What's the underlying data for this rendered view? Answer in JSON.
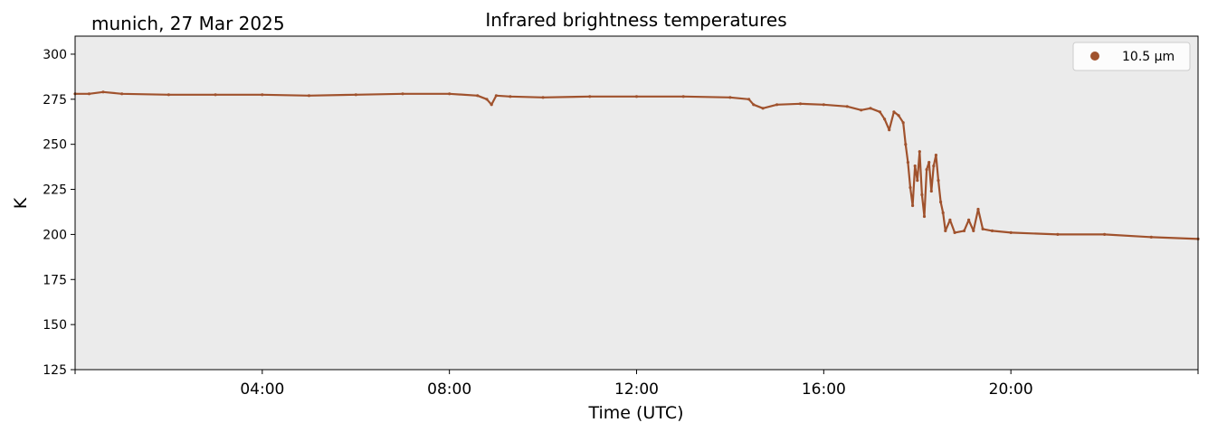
{
  "chart_data": {
    "type": "scatter",
    "title": "Infrared brightness temperatures",
    "subtitle": "munich, 27 Mar 2025",
    "xlabel": "Time (UTC)",
    "ylabel": "K",
    "xlim_hours": [
      0,
      24
    ],
    "x_ticks": [
      {
        "hour": 4,
        "label": "04:00"
      },
      {
        "hour": 8,
        "label": "08:00"
      },
      {
        "hour": 12,
        "label": "12:00"
      },
      {
        "hour": 16,
        "label": "16:00"
      },
      {
        "hour": 20,
        "label": "20:00"
      }
    ],
    "ylim": [
      125,
      310
    ],
    "y_ticks": [
      125,
      150,
      175,
      200,
      225,
      250,
      275,
      300
    ],
    "grid": false,
    "background": "#ebebeb",
    "legend_position": "top-right",
    "series": [
      {
        "name": "10.5 µm",
        "color": "#a0522d",
        "points": [
          [
            0.0,
            278
          ],
          [
            0.3,
            278
          ],
          [
            0.6,
            279
          ],
          [
            1.0,
            278
          ],
          [
            2.0,
            277.5
          ],
          [
            3.0,
            277.5
          ],
          [
            4.0,
            277.5
          ],
          [
            5.0,
            277
          ],
          [
            6.0,
            277.5
          ],
          [
            7.0,
            278
          ],
          [
            8.0,
            278
          ],
          [
            8.6,
            277
          ],
          [
            8.8,
            275
          ],
          [
            8.9,
            272
          ],
          [
            9.0,
            277
          ],
          [
            9.3,
            276.5
          ],
          [
            10.0,
            276
          ],
          [
            11.0,
            276.5
          ],
          [
            12.0,
            276.5
          ],
          [
            13.0,
            276.5
          ],
          [
            14.0,
            276
          ],
          [
            14.4,
            275
          ],
          [
            14.5,
            272
          ],
          [
            14.7,
            270
          ],
          [
            15.0,
            272
          ],
          [
            15.5,
            272.5
          ],
          [
            16.0,
            272
          ],
          [
            16.5,
            271
          ],
          [
            16.8,
            269
          ],
          [
            17.0,
            270
          ],
          [
            17.2,
            268
          ],
          [
            17.3,
            264
          ],
          [
            17.4,
            258
          ],
          [
            17.5,
            268
          ],
          [
            17.6,
            266
          ],
          [
            17.7,
            262
          ],
          [
            17.75,
            250
          ],
          [
            17.8,
            240
          ],
          [
            17.85,
            226
          ],
          [
            17.9,
            216
          ],
          [
            17.95,
            238
          ],
          [
            18.0,
            230
          ],
          [
            18.05,
            246
          ],
          [
            18.1,
            222
          ],
          [
            18.15,
            210
          ],
          [
            18.2,
            236
          ],
          [
            18.25,
            240
          ],
          [
            18.3,
            224
          ],
          [
            18.35,
            238
          ],
          [
            18.4,
            244
          ],
          [
            18.45,
            230
          ],
          [
            18.5,
            218
          ],
          [
            18.55,
            212
          ],
          [
            18.6,
            202
          ],
          [
            18.7,
            208
          ],
          [
            18.8,
            201
          ],
          [
            19.0,
            202
          ],
          [
            19.1,
            208
          ],
          [
            19.2,
            202
          ],
          [
            19.3,
            214
          ],
          [
            19.4,
            203
          ],
          [
            19.6,
            202
          ],
          [
            20.0,
            201
          ],
          [
            21.0,
            200
          ],
          [
            22.0,
            200
          ],
          [
            23.0,
            198.5
          ],
          [
            24.0,
            197.5
          ]
        ]
      }
    ]
  }
}
